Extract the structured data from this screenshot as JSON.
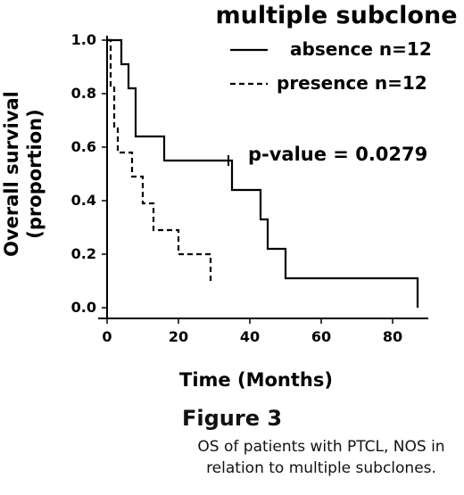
{
  "chart_data": {
    "type": "line",
    "step": true,
    "title": "multiple subclone",
    "xlabel": "Time (Months)",
    "ylabel_lines": [
      "Overall survival",
      "(proportion)"
    ],
    "xlim": [
      0,
      90
    ],
    "ylim": [
      0,
      1.05
    ],
    "xticks": [
      0,
      20,
      40,
      60,
      80
    ],
    "yticks": [
      "0.0",
      "0.2",
      "0.4",
      "0.6",
      "0.8",
      "1.0"
    ],
    "legend_position": "top-right",
    "grid": false,
    "series": [
      {
        "name": "absence",
        "n_label": "n=12",
        "linestyle": "solid",
        "x": [
          0,
          2,
          4,
          6,
          8,
          16,
          35,
          43,
          45,
          50,
          87
        ],
        "y": [
          1.0,
          1.0,
          0.91,
          0.82,
          0.64,
          0.55,
          0.44,
          0.33,
          0.22,
          0.11,
          0.0
        ],
        "censored": [
          {
            "x": 34,
            "y": 0.55
          }
        ]
      },
      {
        "name": "presence",
        "n_label": "n=12",
        "linestyle": "dashed",
        "x": [
          0,
          1,
          2,
          3,
          7,
          10,
          13,
          20,
          23,
          29
        ],
        "y": [
          1.0,
          0.83,
          0.67,
          0.58,
          0.49,
          0.39,
          0.29,
          0.2,
          0.2,
          0.1
        ],
        "censored": []
      }
    ],
    "annotation": "p-value = 0.0279"
  },
  "figure": {
    "label": "Figure 3",
    "caption": "OS of patients with PTCL, NOS in relation to multiple subclones."
  },
  "colors": {
    "line": "#000000",
    "text": "#111111"
  }
}
